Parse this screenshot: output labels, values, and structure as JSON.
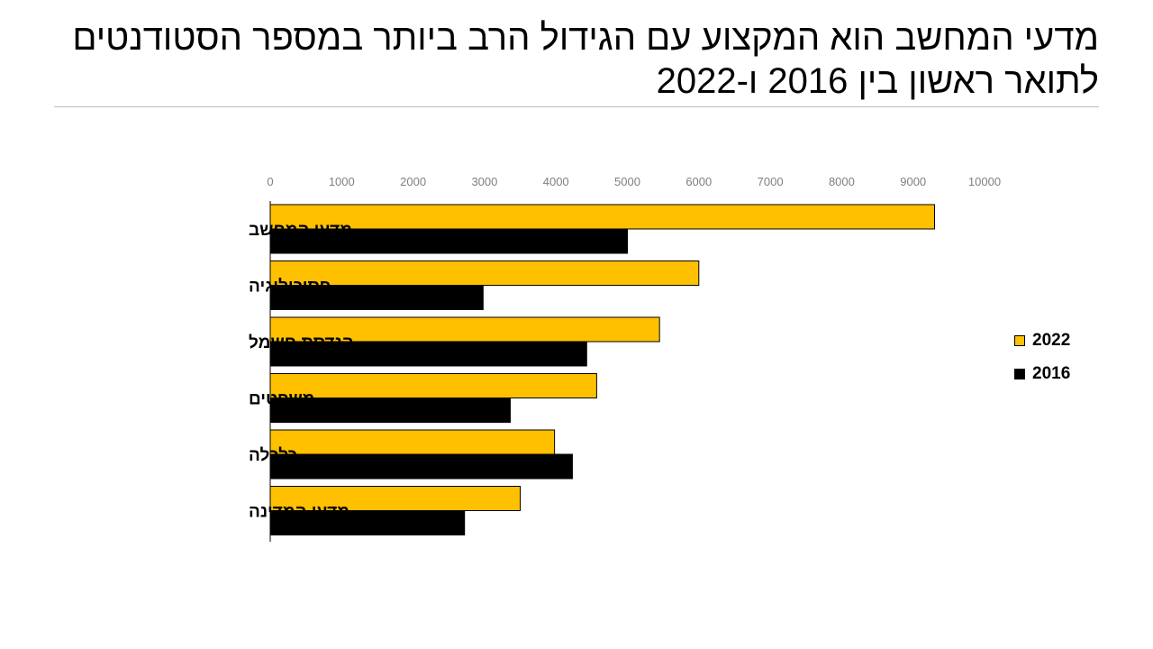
{
  "slide": {
    "title": "מדעי המחשב הוא המקצוע עם הגידול הרב ביותר במספר הסטודנטים לתואר ראשון בין 2016 ו-2022"
  },
  "chart_data": {
    "type": "bar",
    "orientation": "horizontal",
    "categories": [
      "מדעי המחשב",
      "פסיכולוגיה",
      "הנדסת חשמל",
      "משפטים",
      "כלכלה",
      "מדעי המדינה"
    ],
    "series": [
      {
        "name": "2022",
        "color": "#FFC000",
        "values": [
          9300,
          6000,
          5450,
          4570,
          3980,
          3500
        ]
      },
      {
        "name": "2016",
        "color": "#000000",
        "values": [
          5000,
          2980,
          4430,
          3360,
          4230,
          2720
        ]
      }
    ],
    "xlim": [
      0,
      10000
    ],
    "xticks": [
      0,
      1000,
      2000,
      3000,
      4000,
      5000,
      6000,
      7000,
      8000,
      9000,
      10000
    ],
    "axis_position": "top",
    "grid": false,
    "legend_position": "right",
    "title": "",
    "xlabel": "",
    "ylabel": ""
  }
}
